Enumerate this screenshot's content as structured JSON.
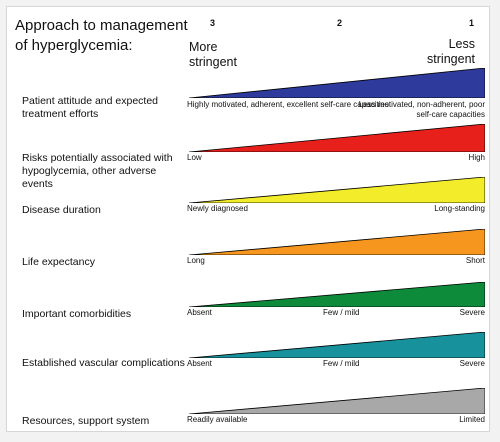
{
  "title": "Approach to management of hyperglycemia:",
  "scale_numbers": [
    "3",
    "2",
    "1"
  ],
  "more_stringent": "More stringent",
  "less_stringent": "Less stringent",
  "rows": [
    {
      "label": "Patient attitude and expected treatment efforts",
      "color": "#2e3a9c",
      "left": "Highly motivated, adherent, excellent self-care capacities",
      "mid": "",
      "right": "Less motivated, non-adherent, poor self-care capacities"
    },
    {
      "label": "Risks potentially associated with hypoglycemia, other adverse events",
      "color": "#e8201c",
      "left": "Low",
      "mid": "",
      "right": "High"
    },
    {
      "label": "Disease duration",
      "color": "#f3ec2a",
      "left": "Newly diagnosed",
      "mid": "",
      "right": "Long-standing"
    },
    {
      "label": "Life expectancy",
      "color": "#f7961e",
      "left": "Long",
      "mid": "",
      "right": "Short"
    },
    {
      "label": "Important comorbidities",
      "color": "#0d8a3a",
      "left": "Absent",
      "mid": "Few / mild",
      "right": "Severe"
    },
    {
      "label": "Established vascular complications",
      "color": "#17929c",
      "left": "Absent",
      "mid": "Few / mild",
      "right": "Severe"
    },
    {
      "label": "Resources, support system",
      "color": "#a8a8a8",
      "left": "Readily available",
      "mid": "",
      "right": "Limited"
    }
  ]
}
